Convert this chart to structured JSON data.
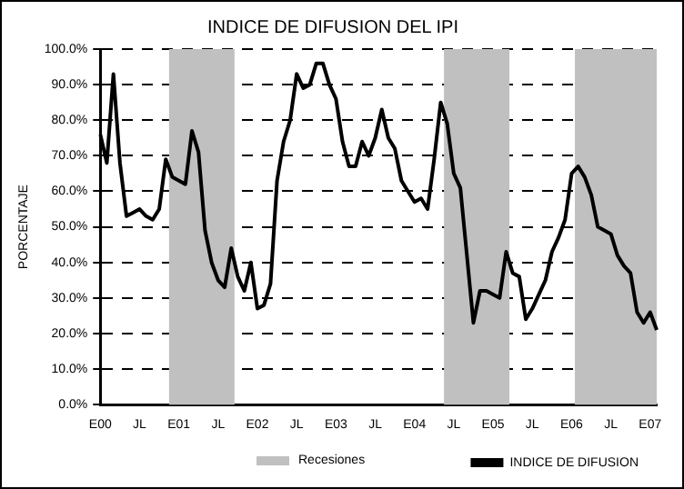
{
  "chart_data": {
    "type": "line",
    "title": "INDICE DE DIFUSION DEL IPI",
    "ylabel": "PORCENTAJE",
    "categories": [
      "E00",
      null,
      null,
      null,
      null,
      null,
      "JL",
      null,
      null,
      null,
      null,
      null,
      "E01",
      null,
      null,
      null,
      null,
      null,
      "JL",
      null,
      null,
      null,
      null,
      null,
      "E02",
      null,
      null,
      null,
      null,
      null,
      "JL",
      null,
      null,
      null,
      null,
      null,
      "E03",
      null,
      null,
      null,
      null,
      null,
      "JL",
      null,
      null,
      null,
      null,
      null,
      "E04",
      null,
      null,
      null,
      null,
      null,
      "JL",
      null,
      null,
      null,
      null,
      null,
      "E05",
      null,
      null,
      null,
      null,
      null,
      "JL",
      null,
      null,
      null,
      null,
      null,
      "E06",
      null,
      null,
      null,
      null,
      null,
      "JL",
      null,
      null,
      null,
      null,
      null,
      "E07",
      null
    ],
    "annotations": [
      "Recesiones"
    ],
    "series": [
      {
        "name": "INDICE DE DIFUSION",
        "color": "#000000",
        "values": [
          76,
          68,
          93,
          68,
          53,
          54,
          55,
          53,
          52,
          55,
          69,
          64,
          63,
          62,
          77,
          71,
          49,
          40,
          35,
          33,
          44,
          36,
          32,
          40,
          27,
          28,
          34,
          63,
          74,
          80,
          93,
          89,
          90,
          96,
          96,
          90,
          86,
          74,
          67,
          67,
          74,
          70,
          75,
          83,
          75,
          72,
          63,
          60,
          57,
          58,
          55,
          69,
          85,
          79,
          65,
          61,
          42,
          23,
          32,
          32,
          31,
          30,
          43,
          37,
          36,
          24,
          27,
          31,
          35,
          43,
          47,
          52,
          65,
          67,
          64,
          59,
          50,
          49,
          48,
          42,
          39,
          37,
          26,
          23,
          26,
          21
        ]
      }
    ],
    "ylim": [
      0,
      100
    ],
    "yticks": [
      {
        "value": 0,
        "label": "0.0%"
      },
      {
        "value": 10,
        "label": "10.0%"
      },
      {
        "value": 20,
        "label": "20.0%"
      },
      {
        "value": 30,
        "label": "30.0%"
      },
      {
        "value": 40,
        "label": "40.0%"
      },
      {
        "value": 50,
        "label": "50.0%"
      },
      {
        "value": 60,
        "label": "60.0%"
      },
      {
        "value": 70,
        "label": "70.0%"
      },
      {
        "value": 80,
        "label": "80.0%"
      },
      {
        "value": 90,
        "label": "90.0%"
      },
      {
        "value": 100,
        "label": "100.0%"
      }
    ],
    "grid": "y",
    "legend": "bottom",
    "line_style": "solid",
    "marker": "none"
  }
}
